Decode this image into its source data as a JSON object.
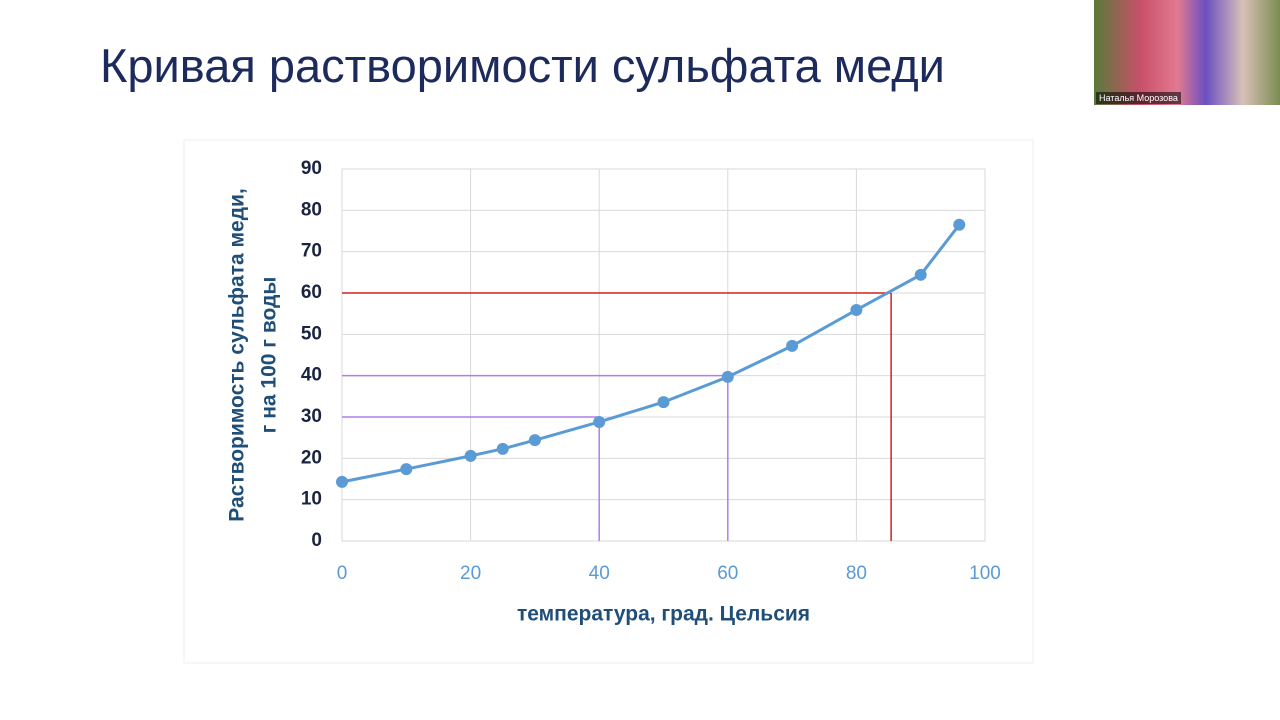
{
  "slide_title": "Кривая растворимости сульфата меди",
  "participant_name": "Наталья Морозова",
  "chart_data": {
    "type": "line",
    "x": [
      0,
      10,
      20,
      25,
      30,
      40,
      50,
      60,
      70,
      80,
      90,
      96
    ],
    "series": [
      {
        "color": "#5b9bd5",
        "values": [
          14.3,
          17.4,
          20.6,
          22.3,
          24.4,
          28.8,
          33.6,
          39.7,
          47.2,
          55.9,
          64.4,
          76.5
        ]
      }
    ],
    "xlim": [
      0,
      100
    ],
    "xticks": [
      0,
      20,
      40,
      60,
      80,
      100
    ],
    "ylim": [
      0,
      90
    ],
    "yticks": [
      0,
      10,
      20,
      30,
      40,
      50,
      60,
      70,
      80,
      90
    ],
    "grid": true,
    "ylabel": [
      "Растворимость сульфата меди,",
      "г на 100 г воды"
    ],
    "xlabel": "температура, град. Цельсия",
    "reference_lines": [
      {
        "x": 85.4,
        "y": 60,
        "color": "#d42020"
      },
      {
        "x": 60,
        "y": 40,
        "color": "#b07ee8"
      },
      {
        "x": 40,
        "y": 30,
        "color": "#b07ee8"
      }
    ]
  }
}
